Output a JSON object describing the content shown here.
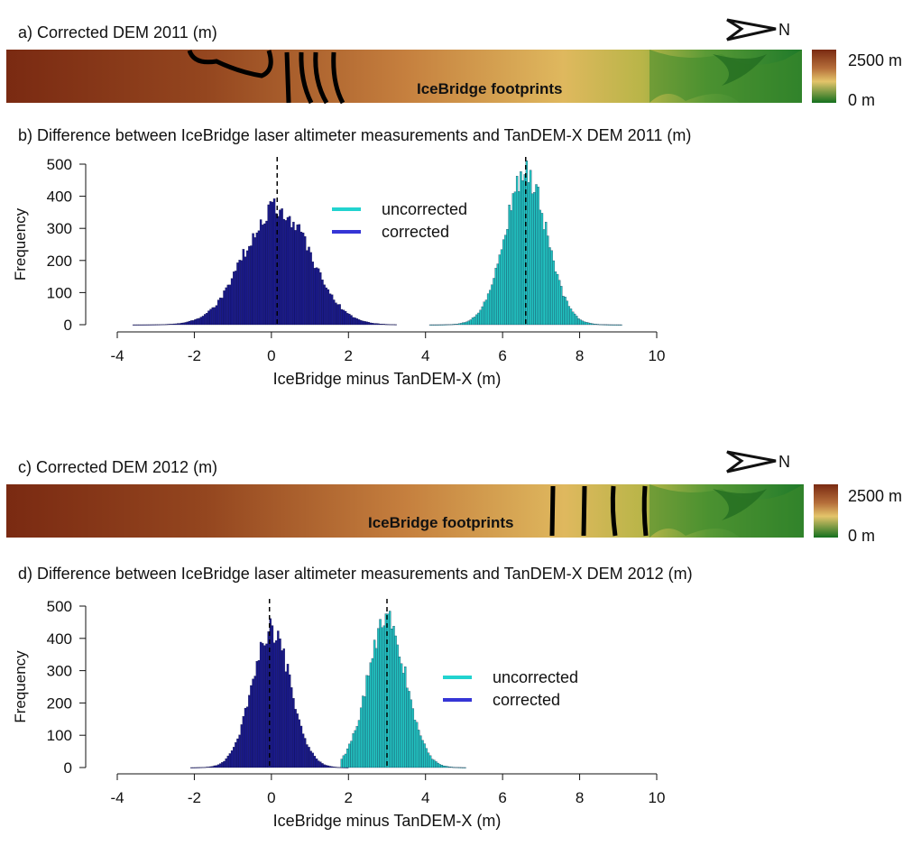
{
  "panels": {
    "a": {
      "title": "a) Corrected DEM 2011 (m)",
      "footprint_label": "IceBridge footprints"
    },
    "b": {
      "title": "b) Difference between IceBridge laser altimeter measurements and TanDEM-X DEM 2011 (m)"
    },
    "c": {
      "title": "c) Corrected DEM 2012 (m)",
      "footprint_label": "IceBridge footprints"
    },
    "d": {
      "title": "d) Difference between IceBridge laser altimeter measurements and TanDEM-X DEM 2012 (m)"
    }
  },
  "north_label": "N",
  "colorbar": {
    "max_label": "2500 m",
    "min_label": "0 m"
  },
  "colors": {
    "corrected": "#1a1a8c",
    "uncorrected": "#22c5c2",
    "legend_corrected": "#3535d6",
    "legend_uncorrected": "#22d3cf",
    "dem_high": "#7a2a12",
    "dem_mid": "#d9b45a",
    "dem_low": "#1c6b1c"
  },
  "chart_data": [
    {
      "type": "bar",
      "subtype": "histogram",
      "panel": "b",
      "title": "b) Difference between IceBridge laser altimeter measurements and TanDEM-X DEM 2011 (m)",
      "xlabel": "IceBridge minus TanDEM-X (m)",
      "ylabel": "Frequency",
      "xlim": [
        -4,
        10
      ],
      "ylim": [
        0,
        500
      ],
      "xticks": [
        "-4",
        "-2",
        "0",
        "2",
        "4",
        "6",
        "8",
        "10"
      ],
      "yticks": [
        "0",
        "100",
        "200",
        "300",
        "400",
        "500"
      ],
      "legend": [
        "uncorrected",
        "corrected"
      ],
      "bin_width": 0.05,
      "series": [
        {
          "name": "corrected",
          "mean": 0.15,
          "sd": 0.85,
          "peak": 370,
          "range": [
            -3.6,
            3.2
          ]
        },
        {
          "name": "uncorrected",
          "mean": 6.6,
          "sd": 0.55,
          "peak": 475,
          "range": [
            4.1,
            9.1
          ]
        }
      ],
      "vlines": [
        0.15,
        6.6
      ]
    },
    {
      "type": "bar",
      "subtype": "histogram",
      "panel": "d",
      "title": "d) Difference between IceBridge laser altimeter measurements and TanDEM-X DEM 2012 (m)",
      "xlabel": "IceBridge minus TanDEM-X (m)",
      "ylabel": "Frequency",
      "xlim": [
        -4,
        10
      ],
      "ylim": [
        0,
        500
      ],
      "xticks": [
        "-4",
        "-2",
        "0",
        "2",
        "4",
        "6",
        "8",
        "10"
      ],
      "yticks": [
        "0",
        "100",
        "200",
        "300",
        "400",
        "500"
      ],
      "legend": [
        "uncorrected",
        "corrected"
      ],
      "bin_width": 0.05,
      "series": [
        {
          "name": "corrected",
          "mean": 0.0,
          "sd": 0.5,
          "peak": 430,
          "range": [
            -2.1,
            2.0
          ]
        },
        {
          "name": "uncorrected",
          "mean": 3.0,
          "sd": 0.5,
          "peak": 460,
          "range": [
            1.8,
            5.0
          ]
        }
      ],
      "vlines": [
        -0.05,
        3.0
      ]
    }
  ]
}
